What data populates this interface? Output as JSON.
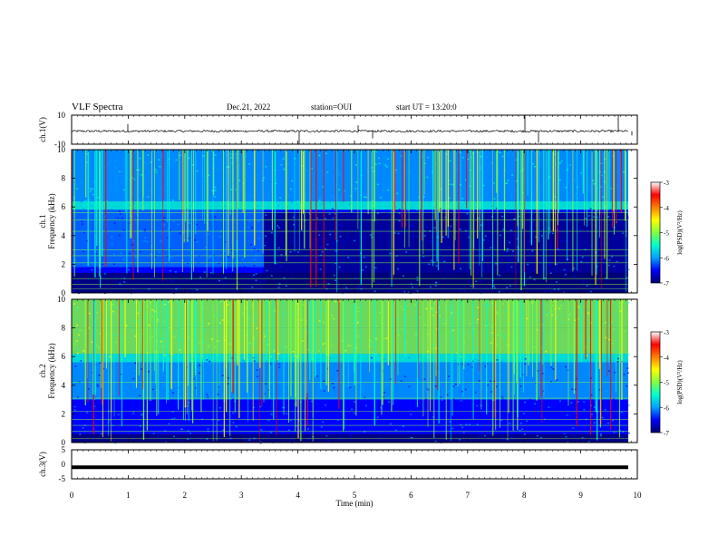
{
  "header": {
    "title": "VLF Spectra",
    "date": "Dec.21, 2022",
    "station": "station=OUI",
    "start": "start UT = 13:20:0"
  },
  "colors": {
    "colormap": [
      "#000070",
      "#0000ff",
      "#00a0ff",
      "#00ffd0",
      "#80ff40",
      "#ffff00",
      "#ff8000",
      "#ff0000",
      "#ffffff"
    ],
    "trace": "#000000"
  },
  "chart_data": [
    {
      "type": "line",
      "ylabel": "ch.1(V)",
      "ylim": [
        -10,
        10
      ],
      "yticks": [
        "10",
        "-10"
      ],
      "xlim": [
        0,
        10
      ],
      "series": [
        {
          "values_description": "noisy trace near -1 V with occasional spikes"
        }
      ]
    },
    {
      "type": "heatmap",
      "ylabel": "ch.1\nFrequency (kHz)",
      "ylim": [
        0,
        10
      ],
      "yticks": [
        "0",
        "2",
        "4",
        "6",
        "8",
        "10"
      ],
      "xlim": [
        0,
        10
      ],
      "colorbar": {
        "label": "log(PSD)(V²/Hz)",
        "range": [
          -7,
          -3
        ],
        "ticks": [
          "-3",
          "-4",
          "-5",
          "-6",
          "-7"
        ]
      }
    },
    {
      "type": "heatmap",
      "ylabel": "ch.2\nFrequency (kHz)",
      "ylim": [
        0,
        10
      ],
      "yticks": [
        "0",
        "2",
        "4",
        "6",
        "8",
        "10"
      ],
      "xlim": [
        0,
        10
      ],
      "colorbar": {
        "label": "log(PSD)(V²/Hz)",
        "range": [
          -7,
          -3
        ],
        "ticks": [
          "-3",
          "-4",
          "-5",
          "-6",
          "-7"
        ]
      }
    },
    {
      "type": "line",
      "ylabel": "ch.3(V)",
      "ylim": [
        -5,
        5
      ],
      "yticks": [
        "5",
        "0",
        "-5"
      ],
      "xlim": [
        0,
        10
      ],
      "xlabel": "Time (min)",
      "xticks": [
        "0",
        "1",
        "2",
        "3",
        "4",
        "5",
        "6",
        "7",
        "8",
        "9",
        "10"
      ],
      "series": [
        {
          "values": [
            -1,
            -1
          ]
        }
      ]
    }
  ]
}
